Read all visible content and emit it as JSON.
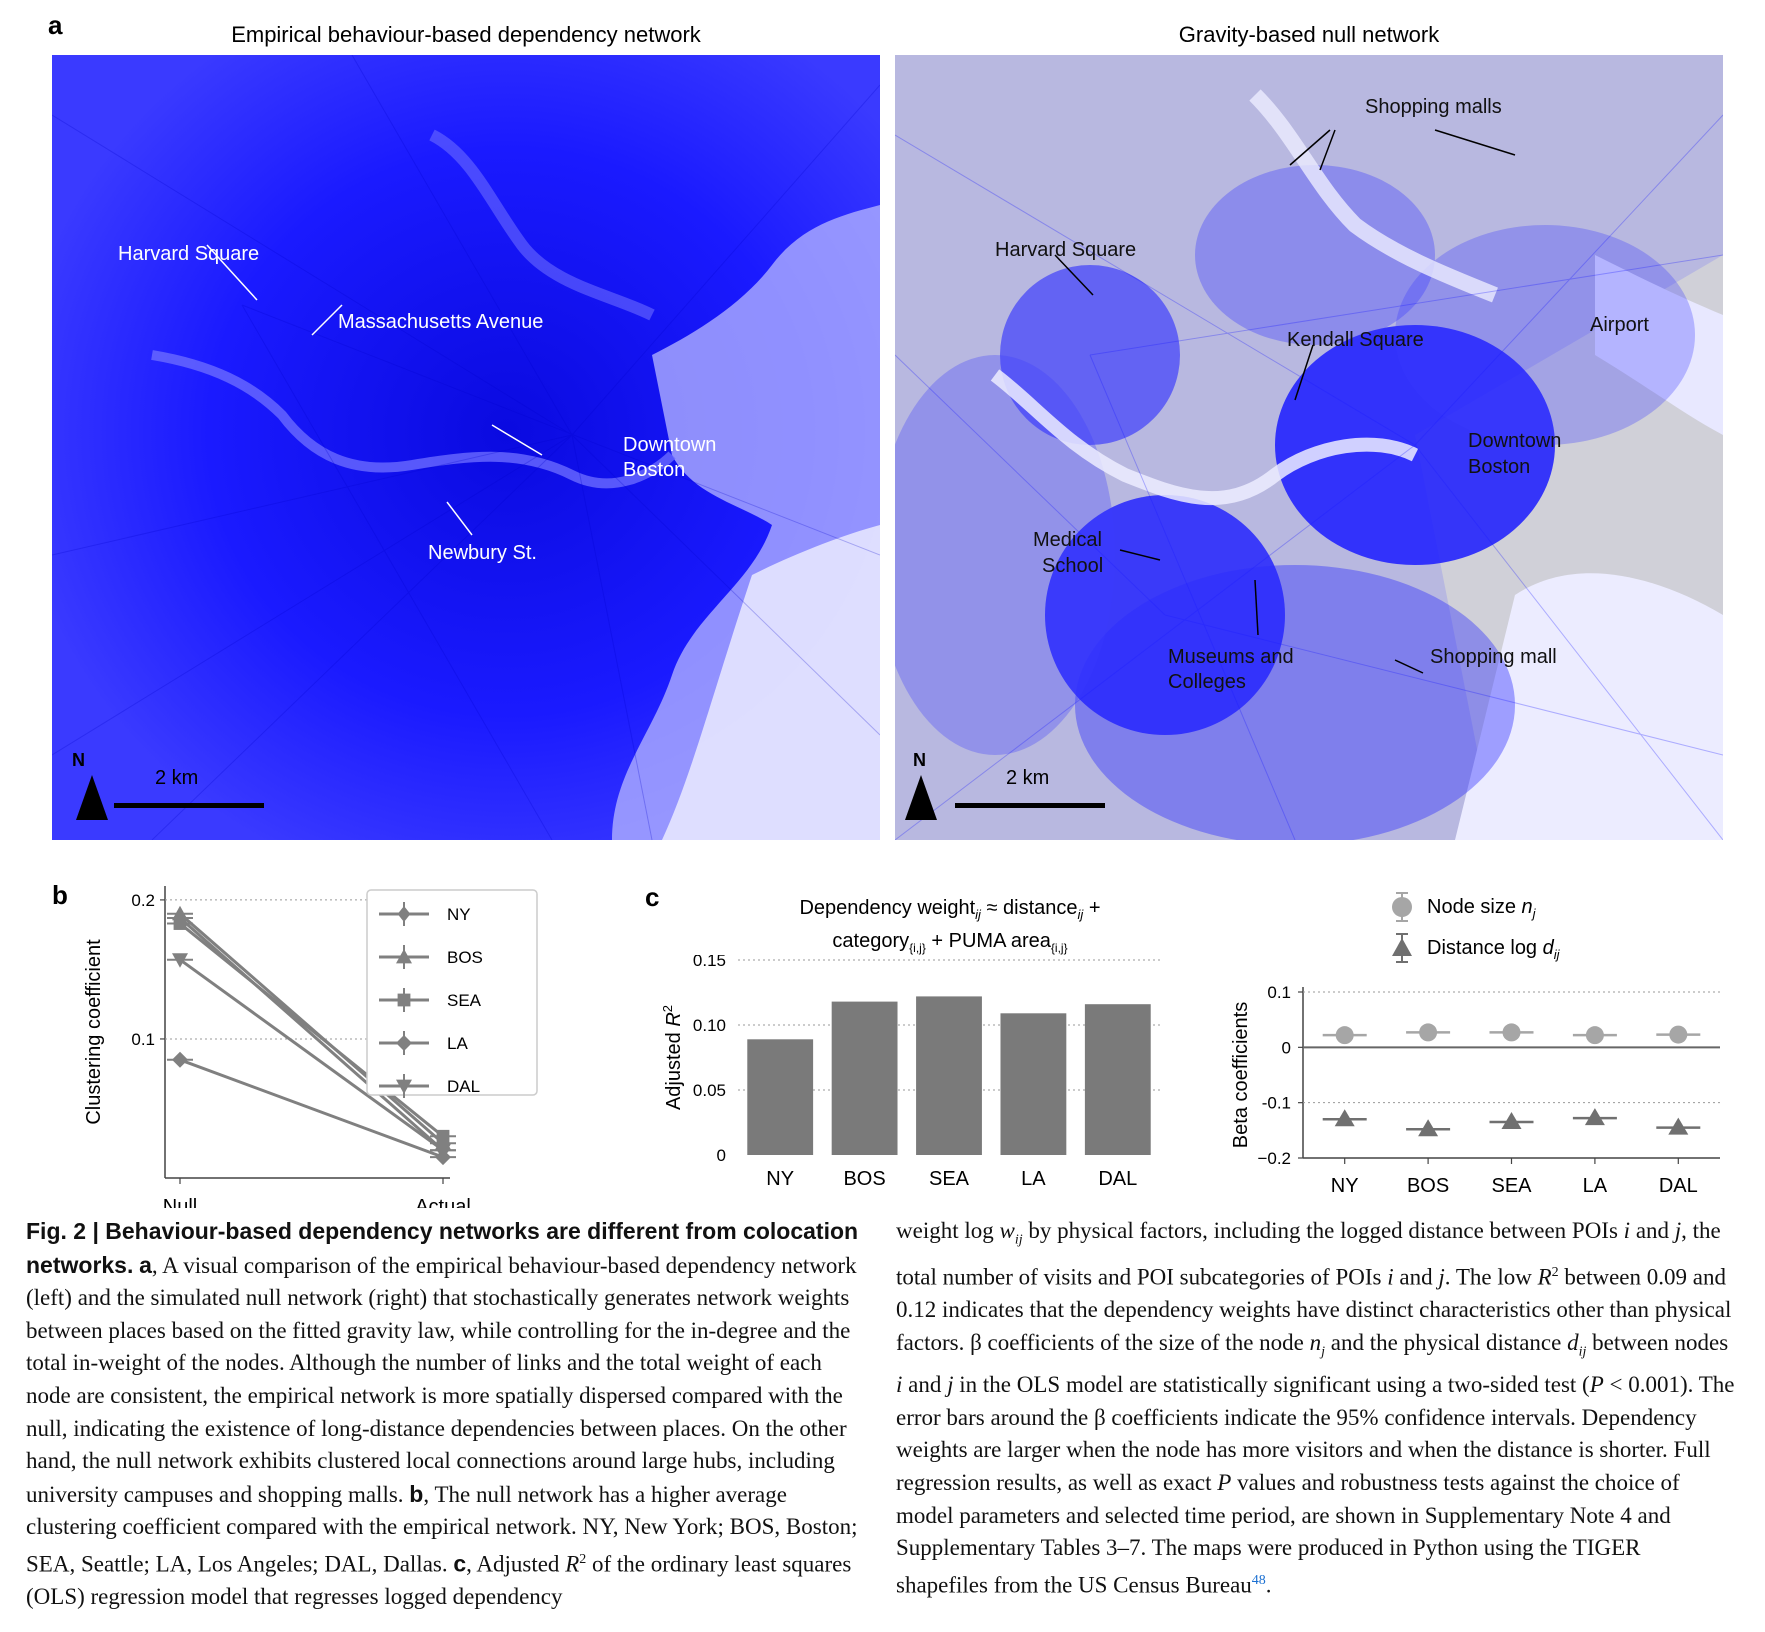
{
  "panel_a": {
    "letter": "a",
    "left_map": {
      "title": "Empirical behaviour-based dependency network",
      "labels": {
        "harvard": "Harvard Square",
        "mass_ave": "Massachusetts Avenue",
        "downtown_1": "Downtown",
        "downtown_2": "Boston",
        "newbury": "Newbury St."
      },
      "north": "N",
      "scale": "2 km"
    },
    "right_map": {
      "title": "Gravity-based null network",
      "labels": {
        "shopping_malls": "Shopping malls",
        "harvard": "Harvard Square",
        "kendall": "Kendall Square",
        "airport": "Airport",
        "downtown_1": "Downtown",
        "downtown_2": "Boston",
        "medical_1": "Medical",
        "medical_2": "School",
        "museums_1": "Museums and",
        "museums_2": "Colleges",
        "shopping_mall": "Shopping mall"
      },
      "north": "N",
      "scale": "2 km"
    },
    "colors": {
      "network": "#1a1aff",
      "water": "#f2f2ff",
      "land": "#c8c8c8"
    }
  },
  "panel_b": {
    "letter": "b"
  },
  "panel_c": {
    "letter": "c",
    "title_line1_a": "Dependency weight",
    "title_line1_sub1": "ij",
    "title_line1_b": " ≈ distance",
    "title_line1_sub2": "ij",
    "title_line1_c": " +",
    "title_line2_a": "category",
    "title_line2_sub1": "{i,j}",
    "title_line2_b": " + PUMA area",
    "title_line2_sub2": "{i,j}",
    "beta_legend": {
      "node_text": "Node size ",
      "node_var": "n",
      "node_sub": "j",
      "dist_text": "Distance log ",
      "dist_var": "d",
      "dist_sub": "ij"
    }
  },
  "chart_data": [
    {
      "type": "line",
      "panel": "b",
      "x": [
        "Null",
        "Actual"
      ],
      "ylabel": "Clustering coefficient",
      "ylim": [
        0.0,
        0.21
      ],
      "yticks": [
        "0.1",
        "0.2"
      ],
      "yticks_values": [
        0.1,
        0.2
      ],
      "grid": "horizontal dotted",
      "legend_position": "top-right",
      "series": [
        {
          "name": "NY",
          "marker": "diamond-line",
          "values": [
            0.187,
            0.02
          ]
        },
        {
          "name": "BOS",
          "marker": "triangle-up",
          "values": [
            0.19,
            0.025
          ]
        },
        {
          "name": "SEA",
          "marker": "square",
          "values": [
            0.183,
            0.03
          ]
        },
        {
          "name": "LA",
          "marker": "diamond",
          "values": [
            0.085,
            0.015
          ]
        },
        {
          "name": "DAL",
          "marker": "triangle-down",
          "values": [
            0.157,
            0.02
          ]
        }
      ],
      "color": "#808080"
    },
    {
      "type": "bar",
      "panel": "c-left",
      "categories": [
        "NY",
        "BOS",
        "SEA",
        "LA",
        "DAL"
      ],
      "values": [
        0.089,
        0.118,
        0.122,
        0.109,
        0.116
      ],
      "ylabel_a": "Adjusted ",
      "ylabel_b": "R",
      "ylabel_sup": "2",
      "ylim": [
        0,
        0.15
      ],
      "yticks": [
        "0",
        "0.05",
        "0.10",
        "0.15"
      ],
      "yticks_values": [
        0,
        0.05,
        0.1,
        0.15
      ],
      "grid": "horizontal dotted",
      "color": "#7a7a7a"
    },
    {
      "type": "scatter",
      "panel": "c-right",
      "categories": [
        "NY",
        "BOS",
        "SEA",
        "LA",
        "DAL"
      ],
      "ylabel": "Beta coefficients",
      "ylim": [
        -0.2,
        0.1
      ],
      "yticks": [
        "0.1",
        "0",
        "-0.1",
        "−0.2"
      ],
      "yticks_values": [
        0.1,
        0,
        -0.1,
        -0.2
      ],
      "grid": "horizontal dotted",
      "legend_position": "top",
      "series": [
        {
          "name": "Node size",
          "marker": "circle",
          "color": "#a6a6a6",
          "values": [
            0.022,
            0.027,
            0.027,
            0.022,
            0.023
          ]
        },
        {
          "name": "Distance log",
          "marker": "triangle",
          "color": "#707070",
          "values": [
            -0.13,
            -0.148,
            -0.135,
            -0.128,
            -0.145
          ]
        }
      ]
    }
  ],
  "caption": {
    "fig_label": "Fig. 2 | ",
    "fig_title": "Behaviour-based dependency networks are different from colocation networks.",
    "a_bold": "a",
    "a_text": ", A visual comparison of the empirical behaviour-based dependency network (left) and the simulated null network (right) that stochastically generates network weights between places based on the fitted gravity law, while controlling for the in-degree and the total in-weight of the nodes. Although the number of links and the total weight of each node are consistent, the empirical network is more spatially dispersed compared with the null, indicating the existence of long-distance dependencies between places. On the other hand, the null network exhibits clustered local connections around large hubs, including university campuses and shopping malls. ",
    "b_bold": "b",
    "b_text": ", The null network has a higher average clustering coefficient compared with the empirical network. NY, New York; BOS, Boston; SEA, Seattle; LA, Los Angeles; DAL, Dallas. ",
    "c_bold": "c",
    "c_text_1": ", Adjusted ",
    "c_R": "R",
    "c_sup": "2",
    "c_text_2": " of the ordinary least squares (OLS) regression model that regresses logged dependency",
    "right_col_1": "weight log ",
    "right_w": "w",
    "right_ij": "ij",
    "right_col_2": " by physical factors, including the logged distance between POIs ",
    "right_i": "i",
    "right_col_3": " and ",
    "right_j": "j",
    "right_col_4": ", the total number of visits and POI subcategories of POIs ",
    "right_i2": "i",
    "right_col_5": " and ",
    "right_j2": "j",
    "right_col_6": ". The low ",
    "right_R": "R",
    "right_sup": "2",
    "right_col_7": " between 0.09 and 0.12 indicates that the dependency weights have distinct characteristics other than physical factors. β coefficients of the size of the node ",
    "right_n": "n",
    "right_nj": "j",
    "right_col_8": " and the physical distance ",
    "right_d": "d",
    "right_dij": "ij",
    "right_col_9": " between nodes ",
    "right_i3": "i",
    "right_col_10": " and ",
    "right_j3": "j",
    "right_col_11": " in the OLS model are statistically significant using a two-sided test (",
    "right_P": "P",
    "right_col_12": " < 0.001). The error bars around the β coefficients indicate the 95% confidence intervals. Dependency weights are larger when the node has more visitors and when the distance is shorter. Full regression results, as well as exact ",
    "right_P2": "P",
    "right_col_13": " values and robustness tests against the choice of model parameters and selected time period, are shown in Supplementary Note 4 and Supplementary Tables 3–7. The maps were produced in Python using the TIGER shapefiles from the US Census Bureau",
    "right_ref": "48",
    "right_col_14": "."
  }
}
